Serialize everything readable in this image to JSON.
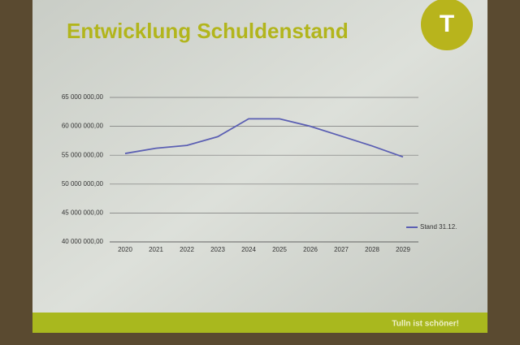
{
  "chart_data": {
    "type": "line",
    "title": "Entwicklung Schuldenstand",
    "categories": [
      "2020",
      "2021",
      "2022",
      "2023",
      "2024",
      "2025",
      "2026",
      "2027",
      "2028",
      "2029"
    ],
    "series": [
      {
        "name": "Stand 31.12.",
        "color": "#5b5fb3",
        "values": [
          55300000,
          56200000,
          56700000,
          58200000,
          61300000,
          61300000,
          60000000,
          58300000,
          56600000,
          54700000
        ]
      }
    ],
    "ylim": [
      40000000,
      65000000
    ],
    "yticks": [
      {
        "value": 40000000,
        "label": "40 000 000,00"
      },
      {
        "value": 45000000,
        "label": "45 000 000,00"
      },
      {
        "value": 50000000,
        "label": "50 000 000,00"
      },
      {
        "value": 55000000,
        "label": "55 000 000,00"
      },
      {
        "value": 60000000,
        "label": "60 000 000,00"
      },
      {
        "value": 65000000,
        "label": "65 000 000,00"
      }
    ],
    "grid": true,
    "legend": "right"
  },
  "slide": {
    "logo": "T",
    "footer": "Tulln ist schöner!"
  }
}
